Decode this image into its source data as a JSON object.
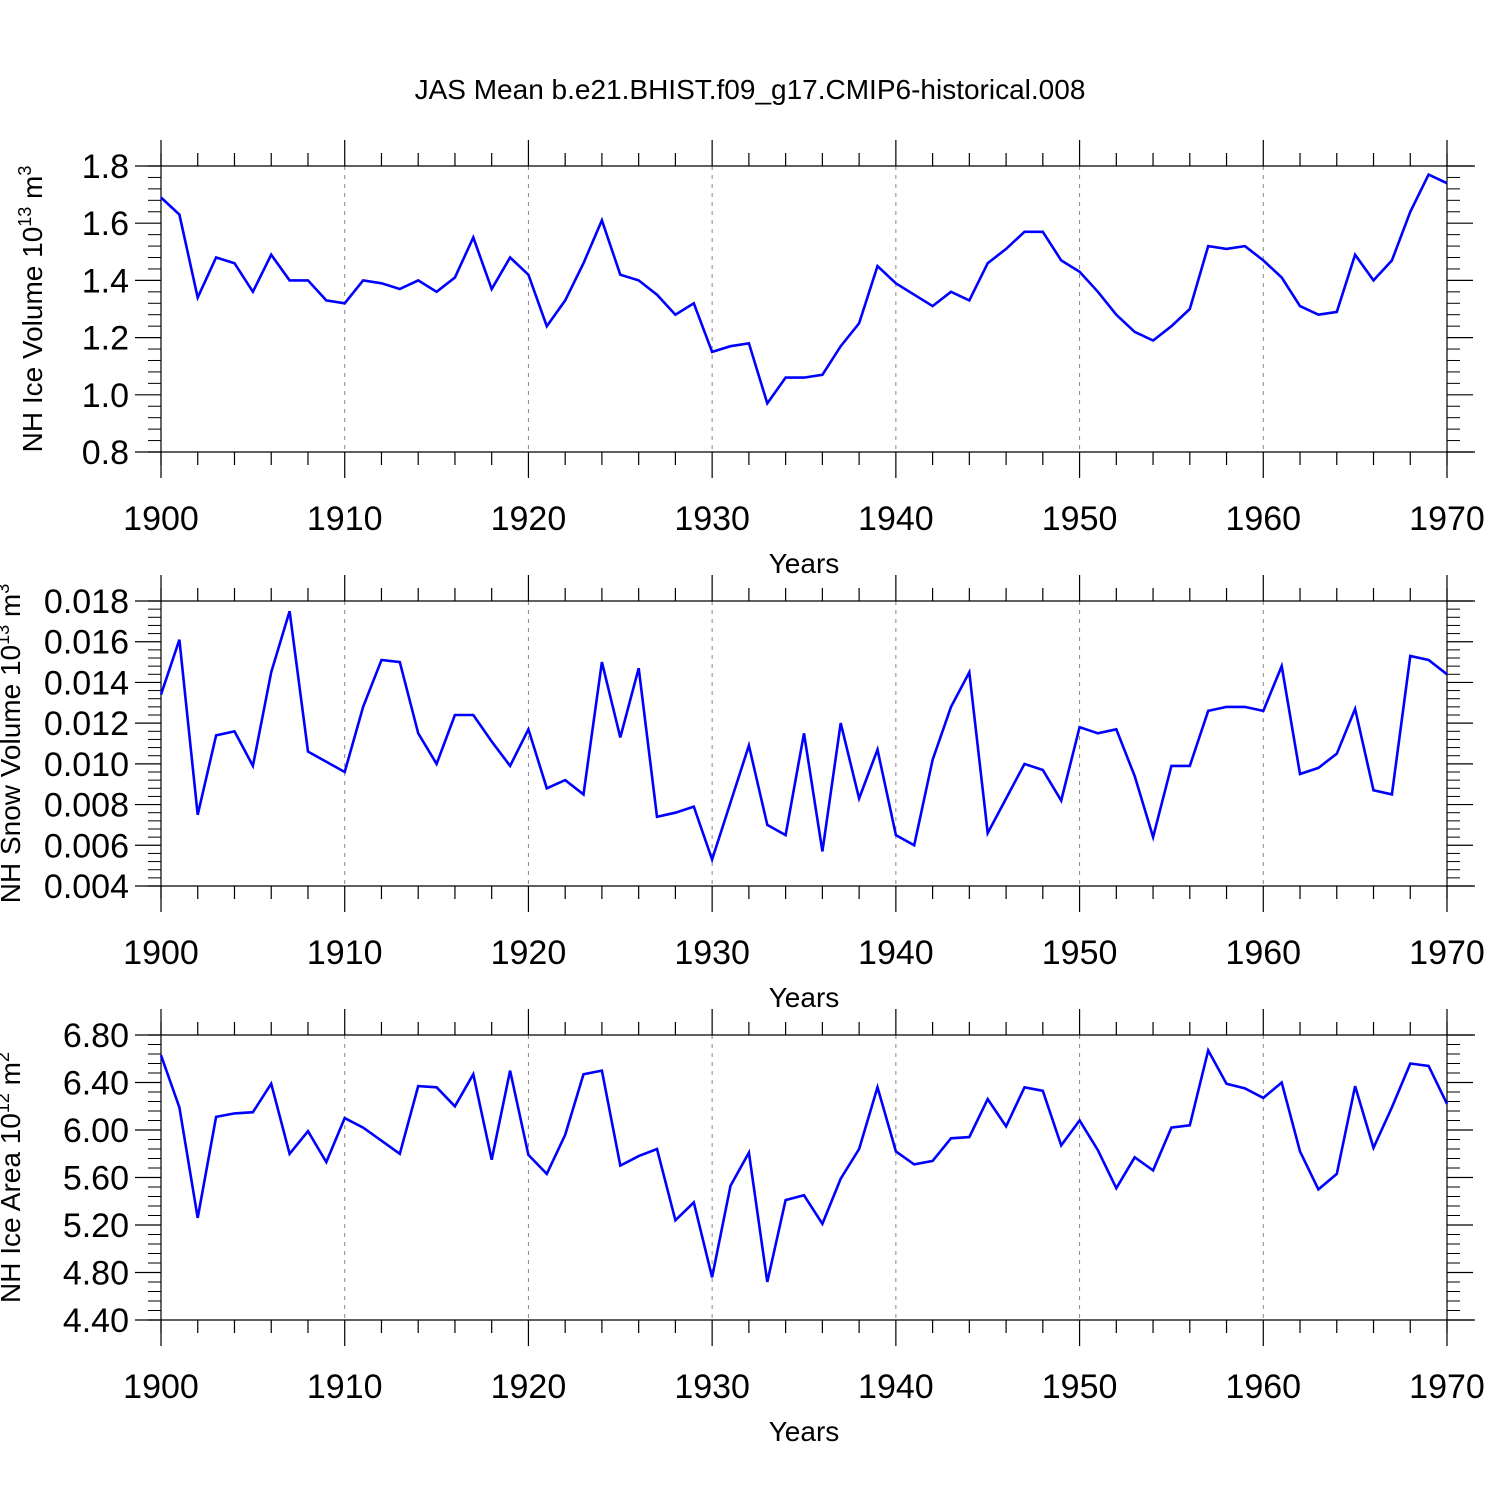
{
  "title": "JAS Mean b.e21.BHIST.f09_g17.CMIP6-historical.008",
  "colors": {
    "line": "#0000ff",
    "axis": "#000000",
    "grid": "#888888"
  },
  "chart_data": [
    {
      "type": "line",
      "ylabel": "NH Ice Volume 10",
      "ylabel_sup": "13",
      "ylabel_unit": " m",
      "ylabel_unit_sup": "3",
      "xlabel": "Years",
      "xlim": [
        1900,
        1970
      ],
      "ylim": [
        0.8,
        1.8
      ],
      "yticks": [
        0.8,
        1.0,
        1.2,
        1.4,
        1.6,
        1.8
      ],
      "ytick_labels": [
        "0.8",
        "1.0",
        "1.2",
        "1.4",
        "1.6",
        "1.8"
      ],
      "xticks": [
        1900,
        1910,
        1920,
        1930,
        1940,
        1950,
        1960,
        1970
      ],
      "xtick_labels": [
        "1900",
        "1910",
        "1920",
        "1930",
        "1940",
        "1950",
        "1960",
        "1970"
      ],
      "grid": "vertical dashed",
      "x": [
        1900,
        1901,
        1902,
        1903,
        1904,
        1905,
        1906,
        1907,
        1908,
        1909,
        1910,
        1911,
        1912,
        1913,
        1914,
        1915,
        1916,
        1917,
        1918,
        1919,
        1920,
        1921,
        1922,
        1923,
        1924,
        1925,
        1926,
        1927,
        1928,
        1929,
        1930,
        1931,
        1932,
        1933,
        1934,
        1935,
        1936,
        1937,
        1938,
        1939,
        1940,
        1941,
        1942,
        1943,
        1944,
        1945,
        1946,
        1947,
        1948,
        1949,
        1950,
        1951,
        1952,
        1953,
        1954,
        1955,
        1956,
        1957,
        1958,
        1959,
        1960,
        1961,
        1962,
        1963,
        1964,
        1965,
        1966,
        1967,
        1968,
        1969,
        1970
      ],
      "values": [
        1.69,
        1.63,
        1.34,
        1.48,
        1.46,
        1.36,
        1.49,
        1.4,
        1.4,
        1.33,
        1.32,
        1.4,
        1.39,
        1.37,
        1.4,
        1.36,
        1.41,
        1.55,
        1.37,
        1.48,
        1.42,
        1.24,
        1.33,
        1.46,
        1.61,
        1.42,
        1.4,
        1.35,
        1.28,
        1.32,
        1.15,
        1.17,
        1.18,
        0.97,
        1.06,
        1.06,
        1.07,
        1.17,
        1.25,
        1.45,
        1.39,
        1.35,
        1.31,
        1.36,
        1.33,
        1.46,
        1.51,
        1.57,
        1.57,
        1.47,
        1.43,
        1.36,
        1.28,
        1.22,
        1.19,
        1.24,
        1.3,
        1.52,
        1.51,
        1.52,
        1.47,
        1.41,
        1.31,
        1.28,
        1.29,
        1.49,
        1.4,
        1.47,
        1.64,
        1.77,
        1.74
      ]
    },
    {
      "type": "line",
      "ylabel": "NH Snow Volume 10",
      "ylabel_sup": "13",
      "ylabel_unit": " m",
      "ylabel_unit_sup": "3",
      "xlabel": "Years",
      "xlim": [
        1900,
        1970
      ],
      "ylim": [
        0.004,
        0.018
      ],
      "yticks": [
        0.004,
        0.006,
        0.008,
        0.01,
        0.012,
        0.014,
        0.016,
        0.018
      ],
      "ytick_labels": [
        "0.004",
        "0.006",
        "0.008",
        "0.010",
        "0.012",
        "0.014",
        "0.016",
        "0.018"
      ],
      "xticks": [
        1900,
        1910,
        1920,
        1930,
        1940,
        1950,
        1960,
        1970
      ],
      "xtick_labels": [
        "1900",
        "1910",
        "1920",
        "1930",
        "1940",
        "1950",
        "1960",
        "1970"
      ],
      "grid": "vertical dashed",
      "x": [
        1900,
        1901,
        1902,
        1903,
        1904,
        1905,
        1906,
        1907,
        1908,
        1909,
        1910,
        1911,
        1912,
        1913,
        1914,
        1915,
        1916,
        1917,
        1918,
        1919,
        1920,
        1921,
        1922,
        1923,
        1924,
        1925,
        1926,
        1927,
        1928,
        1929,
        1930,
        1931,
        1932,
        1933,
        1934,
        1935,
        1936,
        1937,
        1938,
        1939,
        1940,
        1941,
        1942,
        1943,
        1944,
        1945,
        1946,
        1947,
        1948,
        1949,
        1950,
        1951,
        1952,
        1953,
        1954,
        1955,
        1956,
        1957,
        1958,
        1959,
        1960,
        1961,
        1962,
        1963,
        1964,
        1965,
        1966,
        1967,
        1968,
        1969,
        1970
      ],
      "values": [
        0.0134,
        0.0161,
        0.0075,
        0.0114,
        0.0116,
        0.0099,
        0.0145,
        0.0175,
        0.0106,
        0.0101,
        0.0096,
        0.0128,
        0.0151,
        0.015,
        0.0115,
        0.01,
        0.0124,
        0.0124,
        0.0111,
        0.0099,
        0.0117,
        0.0088,
        0.0092,
        0.0085,
        0.015,
        0.0113,
        0.0147,
        0.0074,
        0.0076,
        0.0079,
        0.0053,
        0.0081,
        0.0109,
        0.007,
        0.0065,
        0.0115,
        0.0057,
        0.012,
        0.0083,
        0.0107,
        0.0065,
        0.006,
        0.0102,
        0.0128,
        0.0145,
        0.0066,
        0.0083,
        0.01,
        0.0097,
        0.0082,
        0.0118,
        0.0115,
        0.0117,
        0.0094,
        0.0064,
        0.0099,
        0.0099,
        0.0126,
        0.0128,
        0.0128,
        0.0126,
        0.0148,
        0.0095,
        0.0098,
        0.0105,
        0.0127,
        0.0087,
        0.0085,
        0.0153,
        0.0151,
        0.0144
      ]
    },
    {
      "type": "line",
      "ylabel": "NH Ice Area 10",
      "ylabel_sup": "12",
      "ylabel_unit": " m",
      "ylabel_unit_sup": "2",
      "xlabel": "Years",
      "xlim": [
        1900,
        1970
      ],
      "ylim": [
        4.4,
        6.8
      ],
      "yticks": [
        4.4,
        4.8,
        5.2,
        5.6,
        6.0,
        6.4,
        6.8
      ],
      "ytick_labels": [
        "4.40",
        "4.80",
        "5.20",
        "5.60",
        "6.00",
        "6.40",
        "6.80"
      ],
      "xticks": [
        1900,
        1910,
        1920,
        1930,
        1940,
        1950,
        1960,
        1970
      ],
      "xtick_labels": [
        "1900",
        "1910",
        "1920",
        "1930",
        "1940",
        "1950",
        "1960",
        "1970"
      ],
      "grid": "vertical dashed",
      "x": [
        1900,
        1901,
        1902,
        1903,
        1904,
        1905,
        1906,
        1907,
        1908,
        1909,
        1910,
        1911,
        1912,
        1913,
        1914,
        1915,
        1916,
        1917,
        1918,
        1919,
        1920,
        1921,
        1922,
        1923,
        1924,
        1925,
        1926,
        1927,
        1928,
        1929,
        1930,
        1931,
        1932,
        1933,
        1934,
        1935,
        1936,
        1937,
        1938,
        1939,
        1940,
        1941,
        1942,
        1943,
        1944,
        1945,
        1946,
        1947,
        1948,
        1949,
        1950,
        1951,
        1952,
        1953,
        1954,
        1955,
        1956,
        1957,
        1958,
        1959,
        1960,
        1961,
        1962,
        1963,
        1964,
        1965,
        1966,
        1967,
        1968,
        1969,
        1970
      ],
      "values": [
        6.63,
        6.19,
        5.26,
        6.11,
        6.14,
        6.15,
        6.39,
        5.8,
        5.99,
        5.73,
        6.1,
        6.02,
        5.91,
        5.8,
        6.37,
        6.36,
        6.2,
        6.47,
        5.75,
        6.5,
        5.79,
        5.63,
        5.96,
        6.47,
        6.5,
        5.7,
        5.78,
        5.84,
        5.24,
        5.39,
        4.76,
        5.53,
        5.81,
        4.72,
        5.41,
        5.45,
        5.21,
        5.59,
        5.84,
        6.36,
        5.82,
        5.71,
        5.74,
        5.93,
        5.94,
        6.26,
        6.03,
        6.36,
        6.33,
        5.87,
        6.08,
        5.83,
        5.51,
        5.77,
        5.66,
        6.02,
        6.04,
        6.67,
        6.39,
        6.35,
        6.27,
        6.4,
        5.82,
        5.5,
        5.63,
        6.37,
        5.85,
        6.19,
        6.56,
        6.54,
        6.22
      ]
    }
  ]
}
